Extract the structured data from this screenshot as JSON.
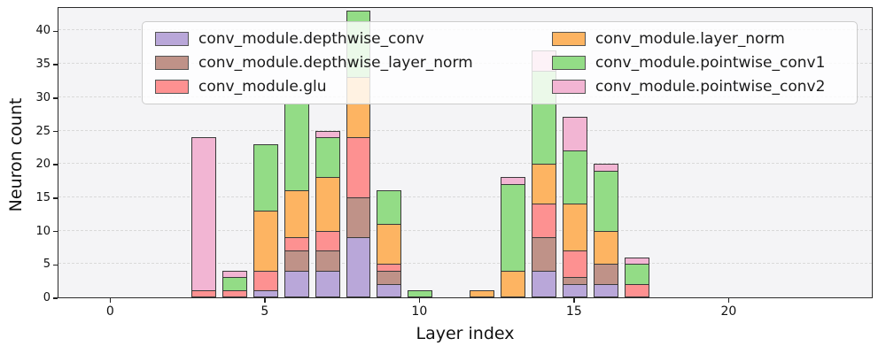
{
  "figure": {
    "background": "#ffffff",
    "plot_background": "#f4f4f6",
    "grid_color": "#d9d9d9",
    "bar_edge_color": "#3a3a3a",
    "spine_color": "#2b2b2b"
  },
  "chart_data": {
    "type": "bar",
    "stacked": true,
    "title": "",
    "xlabel": "Layer index",
    "ylabel": "Neuron count",
    "grid": true,
    "legend_position": "upper center",
    "legend_ncol": 2,
    "xticks": [
      0,
      5,
      10,
      15,
      20
    ],
    "yticks": [
      0,
      5,
      10,
      15,
      20,
      25,
      30,
      35,
      40
    ],
    "xlim": [
      -1.7,
      24.66
    ],
    "ylim": [
      0,
      43.64
    ],
    "bar_width": 0.8,
    "x": [
      3,
      4,
      5,
      6,
      7,
      8,
      9,
      10,
      12,
      13,
      14,
      15,
      16,
      17
    ],
    "series": [
      {
        "name": "conv_module.depthwise_conv",
        "color": "#b9a7d9",
        "values": [
          0,
          0,
          1,
          4,
          4,
          9,
          2,
          0,
          0,
          0,
          4,
          2,
          2,
          0
        ]
      },
      {
        "name": "conv_module.depthwise_layer_norm",
        "color": "#bf9288",
        "values": [
          0,
          0,
          0,
          3,
          3,
          6,
          2,
          0,
          0,
          0,
          5,
          1,
          3,
          0
        ]
      },
      {
        "name": "conv_module.glu",
        "color": "#fd9191",
        "values": [
          1,
          1,
          3,
          2,
          3,
          9,
          1,
          0,
          0,
          0,
          5,
          4,
          0,
          2
        ]
      },
      {
        "name": "conv_module.layer_norm",
        "color": "#fdb462",
        "values": [
          0,
          0,
          9,
          7,
          8,
          9,
          6,
          0,
          1,
          4,
          6,
          7,
          5,
          0
        ]
      },
      {
        "name": "conv_module.pointwise_conv1",
        "color": "#93dc86",
        "values": [
          0,
          2,
          10,
          13,
          6,
          10,
          5,
          1,
          0,
          13,
          14,
          8,
          9,
          3
        ]
      },
      {
        "name": "conv_module.pointwise_conv2",
        "color": "#f2b5d3",
        "values": [
          23,
          1,
          0,
          0,
          1,
          0,
          0,
          0,
          0,
          1,
          3,
          5,
          1,
          1
        ]
      }
    ]
  }
}
